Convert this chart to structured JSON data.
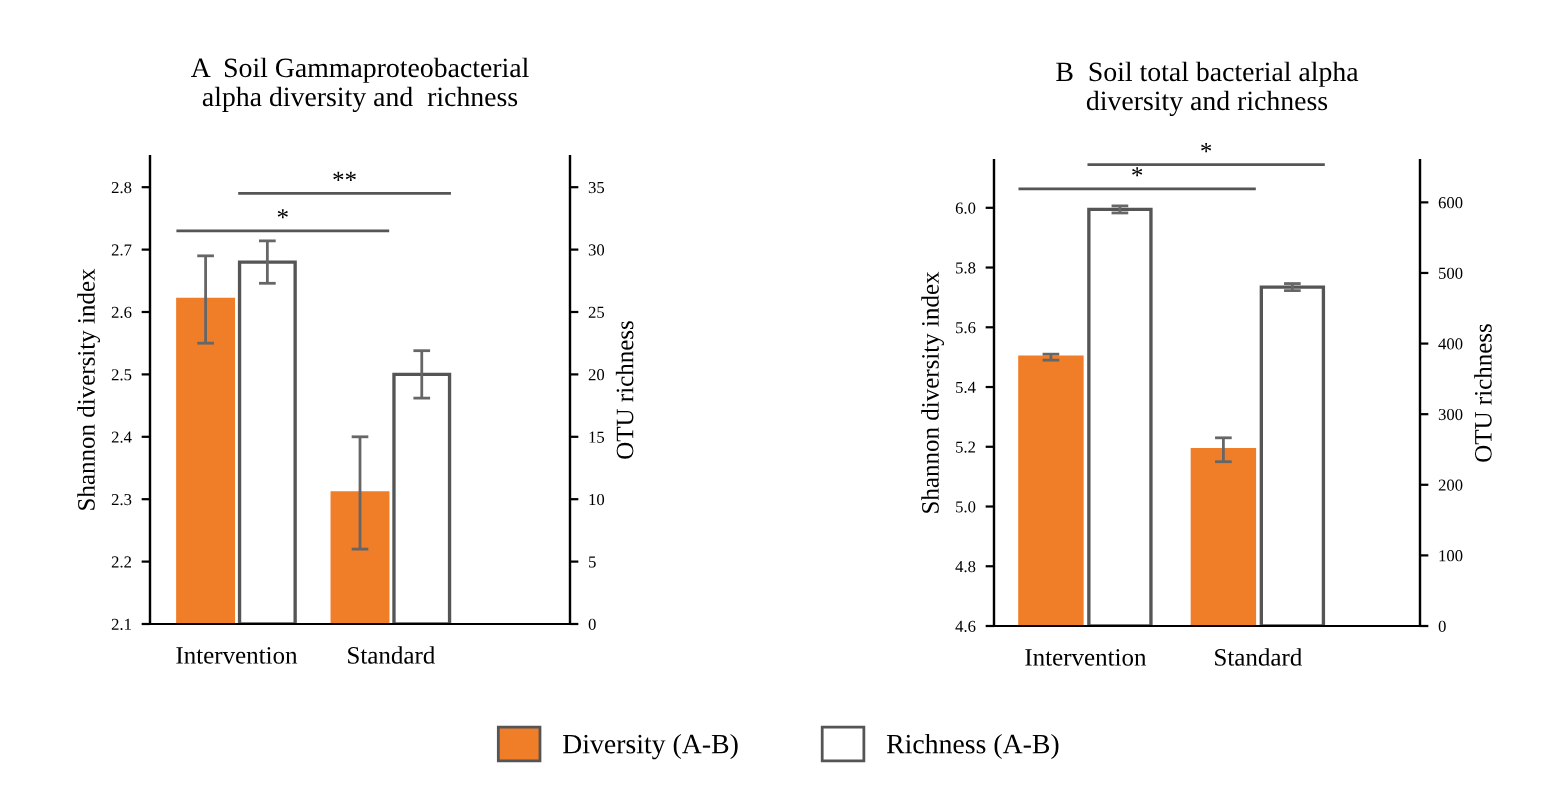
{
  "chart_data": [
    {
      "type": "bar",
      "title": "A  Soil Gammaproteobacterial\nalpha diversity and  richness",
      "categories": [
        "Intervention",
        "Standard"
      ],
      "ylabel": "Shannon diversity index",
      "y2label": "OTU richness",
      "series": [
        {
          "name": "Diversity (A-B)",
          "color": "#f07d28",
          "values": [
            2.62,
            2.31
          ],
          "errors": [
            0.07,
            0.09
          ]
        },
        {
          "name": "Richness (A-B)",
          "color": "#ffffff",
          "axis": "y2",
          "values": [
            29,
            20
          ],
          "errors": [
            1.7,
            1.9
          ]
        }
      ],
      "ylim": [
        2.1,
        2.85
      ],
      "yticks": [
        2.1,
        2.2,
        2.3,
        2.4,
        2.5,
        2.6,
        2.7,
        2.8
      ],
      "y2lim": [
        0,
        37.5
      ],
      "y2ticks": [
        0,
        5,
        10,
        15,
        20,
        25,
        30,
        35
      ],
      "annotations": [
        "*",
        "**"
      ],
      "legend": "bottom"
    },
    {
      "type": "bar",
      "title": "B  Soil total bacterial alpha\ndiversity and richness",
      "categories": [
        "Intervention",
        "Standard"
      ],
      "ylabel": "Shannon diversity index",
      "y2label": "OTU richness",
      "series": [
        {
          "name": "Diversity (A-B)",
          "color": "#f07d28",
          "values": [
            5.5,
            5.19
          ],
          "errors": [
            0.01,
            0.04
          ]
        },
        {
          "name": "Richness (A-B)",
          "color": "#ffffff",
          "axis": "y2",
          "values": [
            590,
            480
          ],
          "errors": [
            5,
            5
          ]
        }
      ],
      "ylim": [
        4.6,
        6.16
      ],
      "yticks": [
        4.6,
        4.8,
        {
          "value": 5.0,
          "label": "5.0"
        },
        5.2,
        5.4,
        5.6,
        5.8,
        {
          "value": 6.0,
          "label": "6.0"
        }
      ],
      "y2lim": [
        0,
        660
      ],
      "y2ticks": [
        0,
        100,
        200,
        300,
        400,
        500,
        600
      ],
      "annotations": [
        "*",
        "*"
      ],
      "legend": "bottom"
    }
  ]
}
